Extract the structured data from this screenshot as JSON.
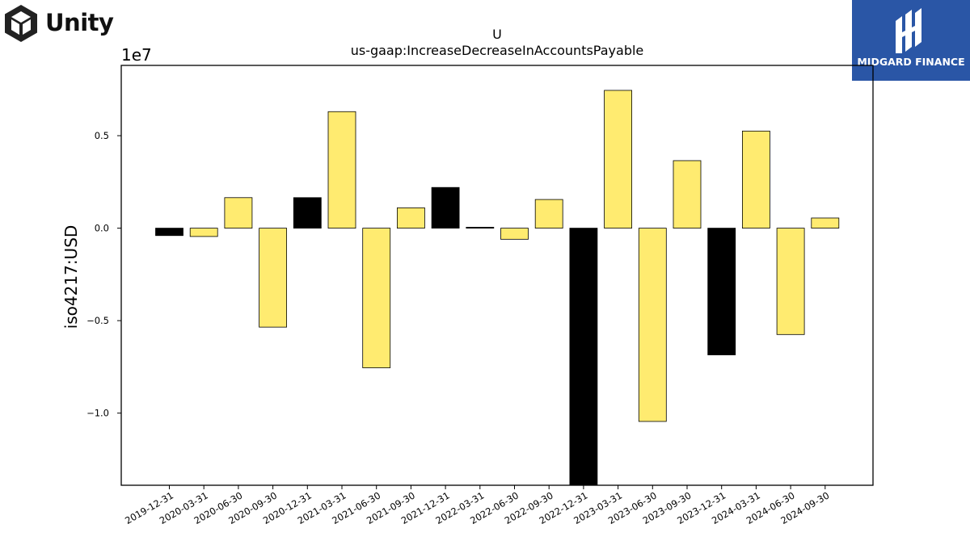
{
  "logos": {
    "left": "Unity",
    "right": "MIDGARD FINANCE"
  },
  "chart_data": {
    "type": "bar",
    "title": "U",
    "subtitle": "us-gaap:IncreaseDecreaseInAccountsPayable",
    "ylabel": "iso4217:USD",
    "xlabel": "",
    "offset_label": "1e7",
    "ylim": [
      -13900000,
      8800000
    ],
    "yticks": [
      -10000000,
      -5000000,
      0,
      5000000
    ],
    "ytick_labels": [
      "−1.0",
      "−0.5",
      "0.0",
      "0.5"
    ],
    "grid": false,
    "colors": {
      "positive_default": "#ffeb70",
      "highlight": "#000000",
      "edge": "#000000"
    },
    "categories": [
      "2019-12-31",
      "2020-03-31",
      "2020-06-30",
      "2020-09-30",
      "2020-12-31",
      "2021-03-31",
      "2021-06-30",
      "2021-09-30",
      "2021-12-31",
      "2022-03-31",
      "2022-06-30",
      "2022-09-30",
      "2022-12-31",
      "2023-03-31",
      "2023-06-30",
      "2023-09-30",
      "2023-12-31",
      "2024-03-31",
      "2024-06-30",
      "2024-09-30"
    ],
    "values": [
      -400000,
      -450000,
      1650000,
      -5350000,
      1650000,
      6300000,
      -7550000,
      1100000,
      2200000,
      50000,
      -600000,
      1550000,
      -13900000,
      7450000,
      -10450000,
      3650000,
      -6850000,
      5250000,
      -5750000,
      550000
    ],
    "bar_colors": [
      "#000000",
      "#ffeb70",
      "#ffeb70",
      "#ffeb70",
      "#000000",
      "#ffeb70",
      "#ffeb70",
      "#ffeb70",
      "#000000",
      "#000000",
      "#ffeb70",
      "#ffeb70",
      "#000000",
      "#ffeb70",
      "#ffeb70",
      "#ffeb70",
      "#000000",
      "#ffeb70",
      "#ffeb70",
      "#ffeb70"
    ]
  }
}
